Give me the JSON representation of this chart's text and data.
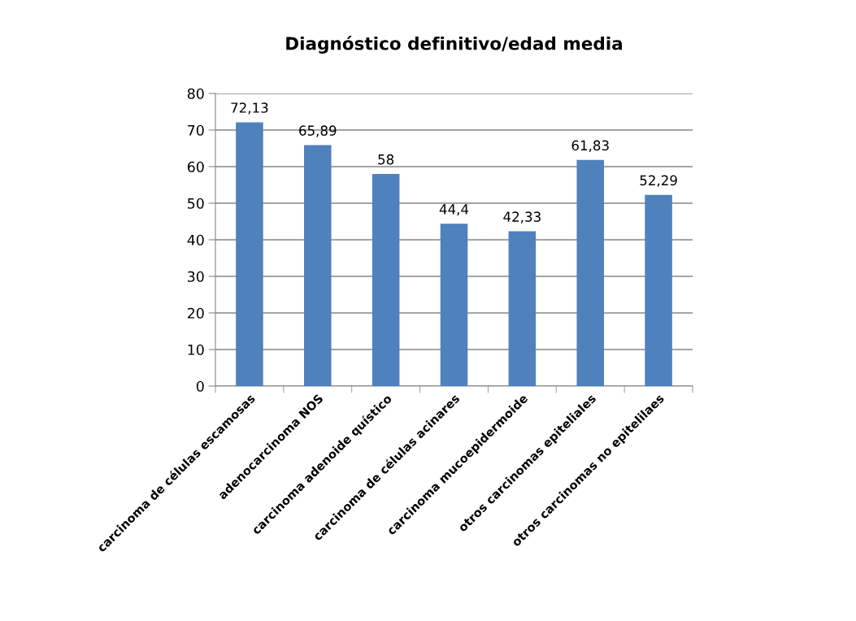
{
  "chart_data": {
    "type": "bar",
    "title": "Diagnóstico definitivo/edad media",
    "categories": [
      "carcinoma de células escamosas",
      "adenocarcinoma NOS",
      "carcinoma adenoide quístico",
      "carcinoma de células acinares",
      "carcinoma mucoepidermoide",
      "otros carcinomas epiteliales",
      "otros carcinomas no epitelilaes"
    ],
    "values": [
      72.13,
      65.89,
      58,
      44.4,
      42.33,
      61.83,
      52.29
    ],
    "value_labels": [
      "72,13",
      "65,89",
      "58",
      "44,4",
      "42,33",
      "61,83",
      "52,29"
    ],
    "color": "#4f81bd",
    "ylim": [
      0,
      80
    ],
    "yticks": [
      0,
      10,
      20,
      30,
      40,
      50,
      60,
      70,
      80
    ],
    "grid": "y"
  }
}
